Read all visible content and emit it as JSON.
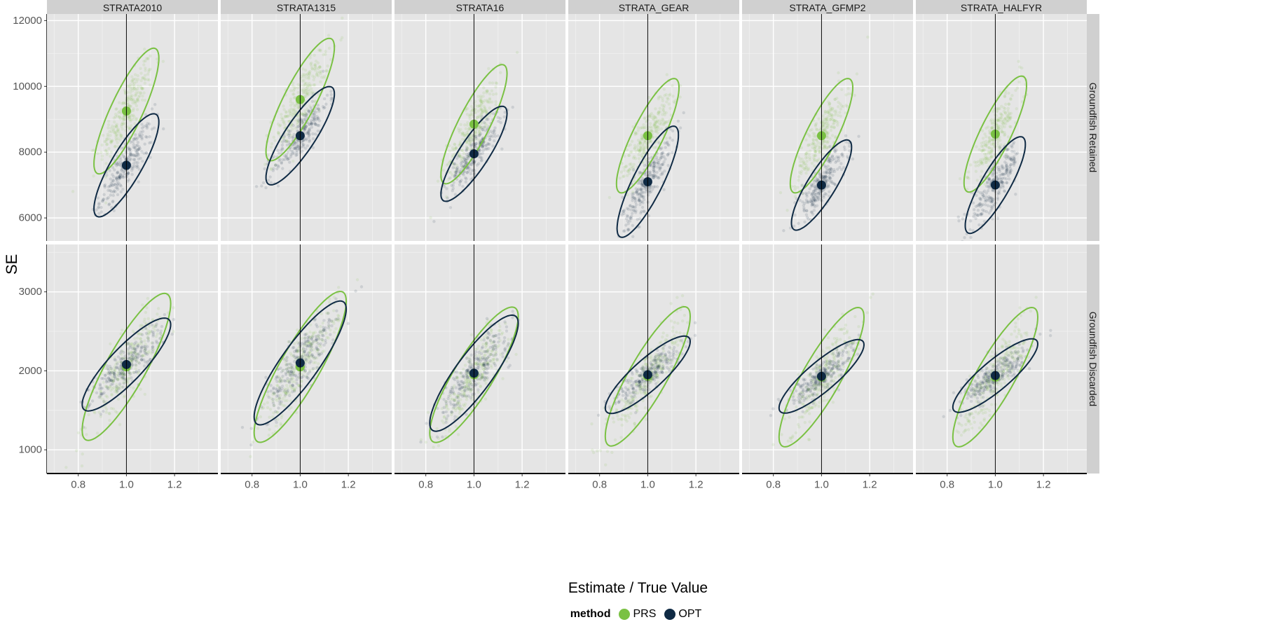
{
  "chart_data": {
    "type": "scatter",
    "xlabel": "Estimate / True Value",
    "ylabel": "SE",
    "legend": {
      "title": "method",
      "position": "bottom",
      "entries": [
        {
          "label": "PRS",
          "color": "#7AC143"
        },
        {
          "label": "OPT",
          "color": "#0F2A44"
        }
      ]
    },
    "grid": true,
    "reference_line_x": 1.0,
    "column_facets": [
      "STRATA2010",
      "STRATA1315",
      "STRATA16",
      "STRATA_GEAR",
      "STRATA_GFMP2",
      "STRATA_HALFYR"
    ],
    "row_facets": [
      "Groundfish Retained",
      "Groundfish Discarded"
    ],
    "x_ticks": [
      0.8,
      1.0,
      1.2
    ],
    "x_tick_labels": [
      "0.8",
      "1.0",
      "1.2"
    ],
    "xlim": [
      0.67,
      1.38
    ],
    "rows": [
      {
        "name": "Groundfish Retained",
        "ylim": [
          5300,
          12200
        ],
        "y_ticks": [
          6000,
          8000,
          10000,
          12000
        ],
        "y_tick_labels": [
          "6000",
          "8000",
          "10000",
          "12000"
        ],
        "panels": [
          {
            "PRS": {
              "x": 1.0,
              "y": 9250,
              "sx": 0.055,
              "sy": 780,
              "r": 0.84
            },
            "OPT": {
              "x": 1.0,
              "y": 7600,
              "sx": 0.055,
              "sy": 640,
              "r": 0.84
            }
          },
          {
            "PRS": {
              "x": 1.0,
              "y": 9600,
              "sx": 0.058,
              "sy": 760,
              "r": 0.85
            },
            "OPT": {
              "x": 1.0,
              "y": 8500,
              "sx": 0.058,
              "sy": 610,
              "r": 0.85
            }
          },
          {
            "PRS": {
              "x": 1.0,
              "y": 8850,
              "sx": 0.056,
              "sy": 740,
              "r": 0.85
            },
            "OPT": {
              "x": 1.0,
              "y": 7950,
              "sx": 0.056,
              "sy": 590,
              "r": 0.85
            }
          },
          {
            "PRS": {
              "x": 1.0,
              "y": 8500,
              "sx": 0.053,
              "sy": 710,
              "r": 0.84
            },
            "OPT": {
              "x": 1.0,
              "y": 7100,
              "sx": 0.052,
              "sy": 690,
              "r": 0.84
            }
          },
          {
            "PRS": {
              "x": 1.0,
              "y": 8500,
              "sx": 0.053,
              "sy": 710,
              "r": 0.84
            },
            "OPT": {
              "x": 1.0,
              "y": 7000,
              "sx": 0.051,
              "sy": 560,
              "r": 0.84
            }
          },
          {
            "PRS": {
              "x": 1.0,
              "y": 8550,
              "sx": 0.053,
              "sy": 720,
              "r": 0.84
            },
            "OPT": {
              "x": 1.0,
              "y": 7000,
              "sx": 0.051,
              "sy": 600,
              "r": 0.84
            }
          }
        ]
      },
      {
        "name": "Groundfish Discarded",
        "ylim": [
          700,
          3600
        ],
        "y_ticks": [
          1000,
          2000,
          3000
        ],
        "y_tick_labels": [
          "1000",
          "2000",
          "3000"
        ],
        "panels": [
          {
            "PRS": {
              "x": 1.0,
              "y": 2050,
              "sx": 0.075,
              "sy": 380,
              "r": 0.86
            },
            "OPT": {
              "x": 1.0,
              "y": 2080,
              "sx": 0.075,
              "sy": 240,
              "r": 0.86
            }
          },
          {
            "PRS": {
              "x": 1.0,
              "y": 2050,
              "sx": 0.078,
              "sy": 390,
              "r": 0.87
            },
            "OPT": {
              "x": 1.0,
              "y": 2100,
              "sx": 0.078,
              "sy": 320,
              "r": 0.87
            }
          },
          {
            "PRS": {
              "x": 1.0,
              "y": 1950,
              "sx": 0.075,
              "sy": 350,
              "r": 0.86
            },
            "OPT": {
              "x": 1.0,
              "y": 1970,
              "sx": 0.075,
              "sy": 300,
              "r": 0.86
            }
          },
          {
            "PRS": {
              "x": 1.0,
              "y": 1930,
              "sx": 0.072,
              "sy": 360,
              "r": 0.86
            },
            "OPT": {
              "x": 1.0,
              "y": 1950,
              "sx": 0.072,
              "sy": 200,
              "r": 0.86
            }
          },
          {
            "PRS": {
              "x": 1.0,
              "y": 1920,
              "sx": 0.072,
              "sy": 360,
              "r": 0.86
            },
            "OPT": {
              "x": 1.0,
              "y": 1930,
              "sx": 0.072,
              "sy": 190,
              "r": 0.86
            }
          },
          {
            "PRS": {
              "x": 1.0,
              "y": 1920,
              "sx": 0.072,
              "sy": 360,
              "r": 0.86
            },
            "OPT": {
              "x": 1.0,
              "y": 1940,
              "sx": 0.072,
              "sy": 190,
              "r": 0.86
            }
          }
        ]
      }
    ]
  }
}
